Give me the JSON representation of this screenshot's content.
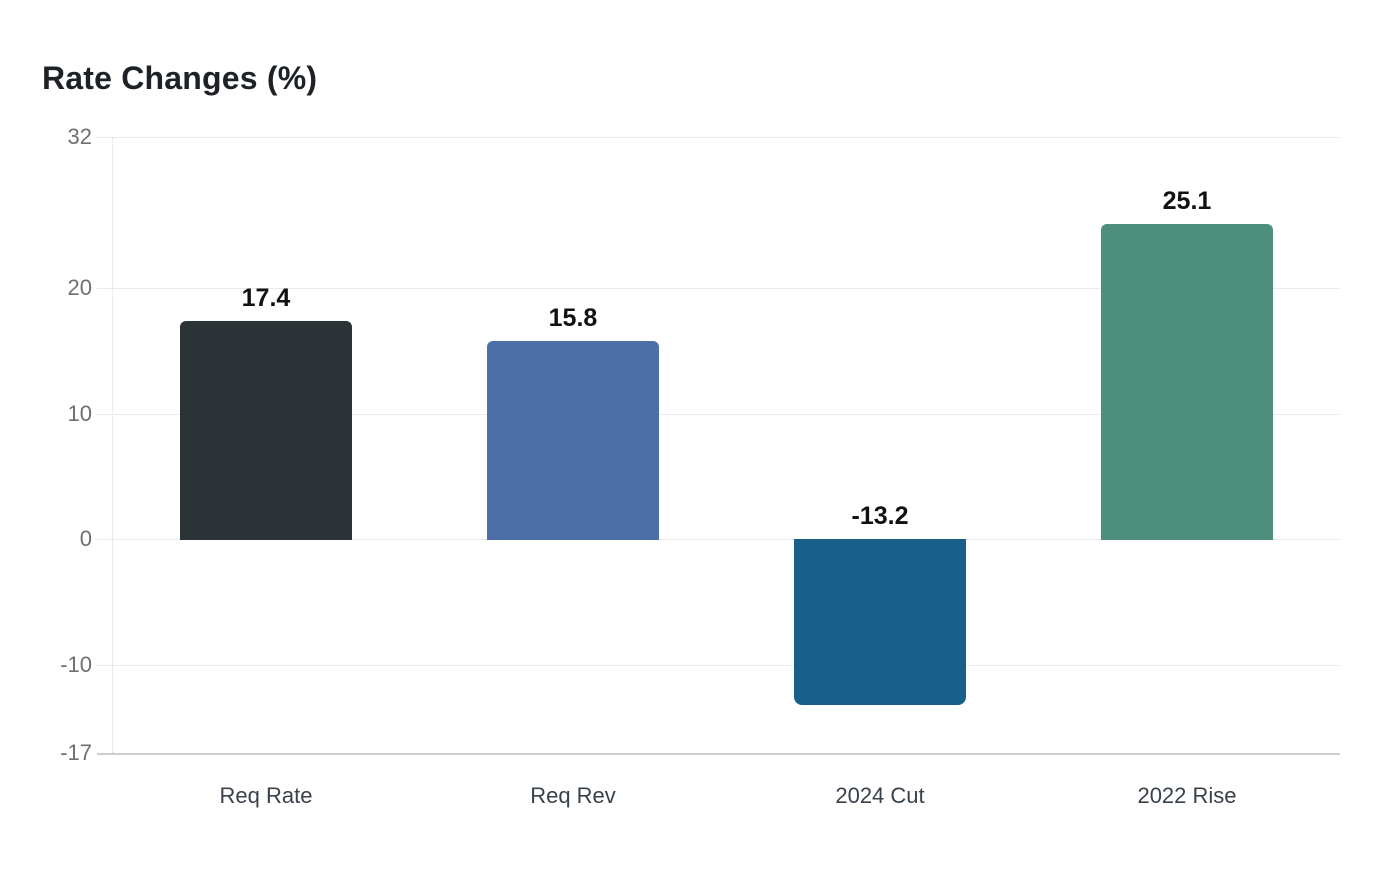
{
  "chart_data": {
    "type": "bar",
    "title": "Rate Changes (%)",
    "categories": [
      "Req Rate",
      "Req Rev",
      "2024 Cut",
      "2022 Rise"
    ],
    "values": [
      17.4,
      15.8,
      -13.2,
      25.1
    ],
    "value_labels": [
      "17.4",
      "15.8",
      "-13.2",
      "25.1"
    ],
    "bar_colors": [
      "#2c3336",
      "#4b6fa6",
      "#16608b",
      "#4d8e7c"
    ],
    "yticks": [
      32,
      20,
      10,
      0,
      -10,
      -17
    ],
    "ytick_labels": [
      "32",
      "20",
      "10",
      "0",
      "-10",
      "-17"
    ],
    "ylim": [
      -17,
      32
    ],
    "xlabel": "",
    "ylabel": "",
    "grid": true,
    "legend_position": "none",
    "colors": {
      "background": "#ffffff",
      "gridline": "#ebebeb",
      "axis_line": "#cdcdcd",
      "ytick_text": "#6f6f6f",
      "xtick_text": "#39424a",
      "value_text": "#111111",
      "title_text": "#1e2226"
    }
  }
}
